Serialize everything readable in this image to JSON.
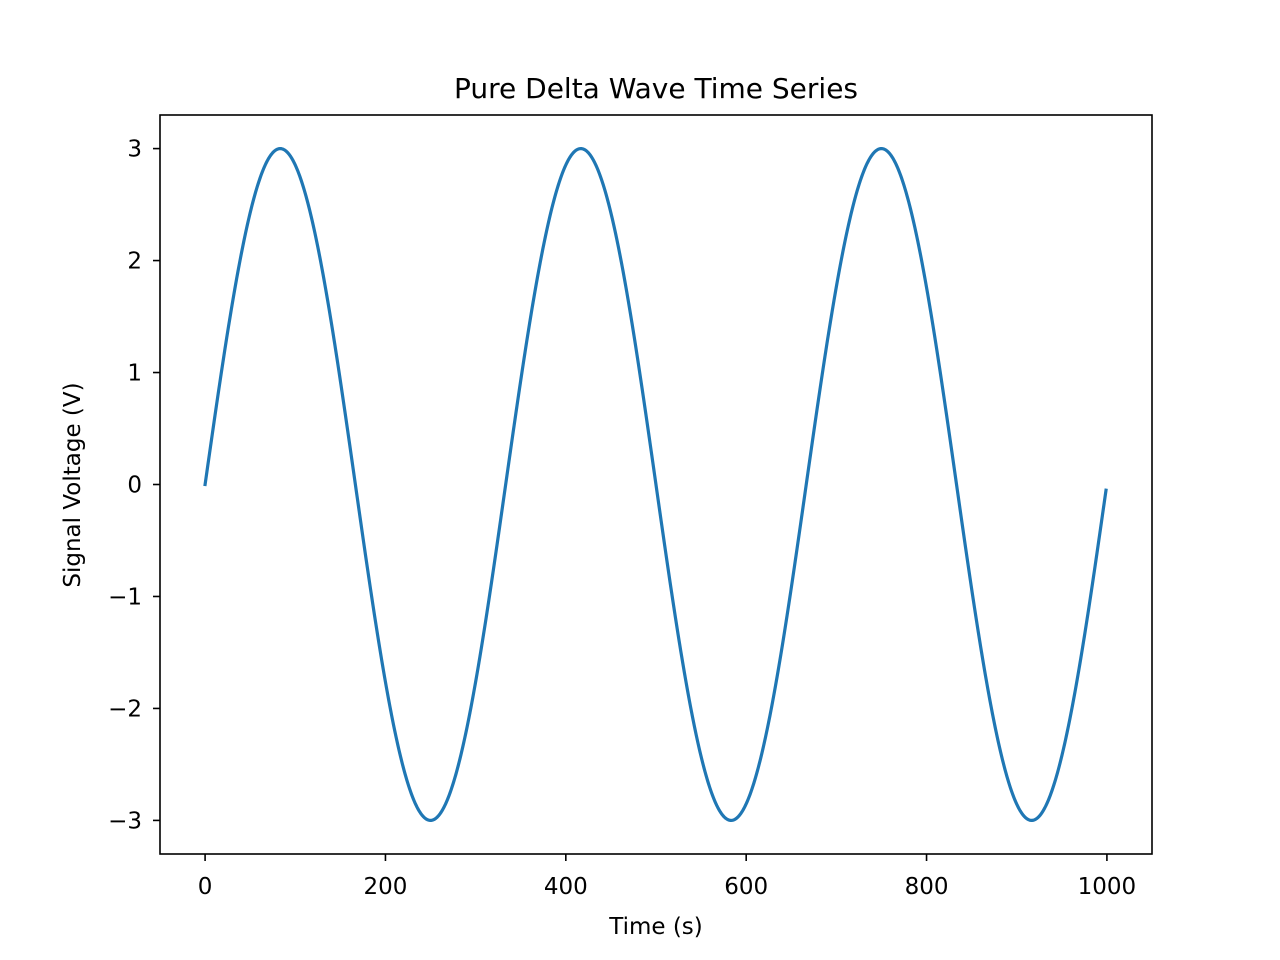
{
  "chart_data": {
    "type": "line",
    "title": "Pure Delta Wave Time Series",
    "xlabel": "Time (s)",
    "ylabel": "Signal Voltage (V)",
    "xlim": [
      -50,
      1050
    ],
    "ylim": [
      -3.3,
      3.3
    ],
    "xticks": [
      0,
      200,
      400,
      600,
      800,
      1000
    ],
    "xtick_labels": [
      "0",
      "200",
      "400",
      "600",
      "800",
      "1000"
    ],
    "yticks": [
      3,
      2,
      1,
      0,
      -1,
      -2,
      -3
    ],
    "ytick_labels": [
      "3",
      "2",
      "1",
      "0",
      "−1",
      "−2",
      "−3"
    ],
    "grid": false,
    "legend": false,
    "series": [
      {
        "color": "#1f77b4",
        "function": "3*sin(2*pi*x/333.3)",
        "x": [
          0,
          20,
          40,
          60,
          83,
          100,
          120,
          140,
          160,
          180,
          200,
          220,
          250,
          270,
          290,
          310,
          330,
          350,
          370,
          390,
          417,
          440,
          460,
          480,
          500,
          520,
          540,
          560,
          583,
          600,
          620,
          640,
          660,
          680,
          700,
          720,
          750,
          770,
          790,
          810,
          830,
          850,
          870,
          890,
          917,
          940,
          960,
          980,
          999
        ],
        "y": [
          0.0,
          1.11,
          2.04,
          2.72,
          3.0,
          2.89,
          2.44,
          1.67,
          0.69,
          -0.38,
          -1.42,
          -2.29,
          -3.0,
          -2.87,
          -2.39,
          -1.61,
          -0.61,
          0.46,
          1.48,
          2.34,
          3.0,
          2.77,
          2.25,
          1.42,
          0.41,
          -0.65,
          -1.64,
          -2.42,
          -3.0,
          -2.87,
          -2.42,
          -1.65,
          -0.66,
          0.4,
          1.41,
          2.25,
          3.0,
          2.88,
          2.42,
          1.64,
          0.65,
          -0.4,
          -1.41,
          -2.28,
          -3.0,
          -2.71,
          -2.07,
          -1.15,
          -0.04
        ]
      }
    ]
  }
}
